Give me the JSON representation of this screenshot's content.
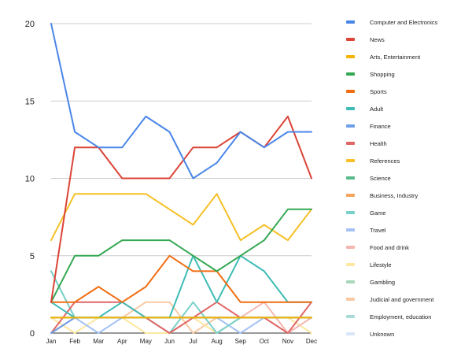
{
  "chart_data": {
    "type": "line",
    "categories": [
      "Jan",
      "Feb",
      "Mar",
      "Apr",
      "May",
      "Jun",
      "Jul",
      "Aug",
      "Sep",
      "Oct",
      "Nov",
      "Dec"
    ],
    "ylim": [
      0,
      20
    ],
    "yticks": [
      "0",
      "5",
      "10",
      "15",
      "20"
    ],
    "grid": true,
    "legend_position": "right",
    "series": [
      {
        "name": "Computer and Electronics",
        "color": "#4a86e8",
        "values": [
          20,
          13,
          12,
          12,
          14,
          13,
          10,
          11,
          13,
          12,
          13,
          13
        ]
      },
      {
        "name": "News",
        "color": "#db4437",
        "values": [
          2,
          12,
          12,
          10,
          10,
          10,
          12,
          12,
          13,
          12,
          14,
          10
        ]
      },
      {
        "name": "Arts, Entertainment",
        "color": "#f4b400",
        "values": [
          1,
          1,
          1,
          1,
          1,
          1,
          1,
          1,
          1,
          1,
          1,
          1
        ]
      },
      {
        "name": "Shopping",
        "color": "#34a853",
        "values": [
          2,
          5,
          5,
          6,
          6,
          6,
          5,
          4,
          5,
          6,
          8,
          8
        ]
      },
      {
        "name": "Sports",
        "color": "#f06d12",
        "values": [
          2,
          2,
          3,
          2,
          3,
          5,
          4,
          4,
          2,
          2,
          2,
          2
        ]
      },
      {
        "name": "Adult",
        "color": "#3ebcb5",
        "values": [
          2,
          1,
          1,
          2,
          1,
          1,
          5,
          2,
          5,
          4,
          2,
          2
        ]
      },
      {
        "name": "Finance",
        "color": "#6fa0e8",
        "values": [
          0,
          1,
          1,
          1,
          1,
          1,
          1,
          1,
          1,
          1,
          1,
          1
        ]
      },
      {
        "name": "Health",
        "color": "#e06666",
        "values": [
          0,
          2,
          2,
          2,
          1,
          0,
          1,
          2,
          1,
          1,
          0,
          2
        ]
      },
      {
        "name": "References",
        "color": "#f6c026",
        "values": [
          6,
          9,
          9,
          9,
          9,
          8,
          7,
          9,
          6,
          7,
          6,
          8
        ]
      },
      {
        "name": "Science",
        "color": "#57bb8a",
        "values": [
          1,
          1,
          1,
          1,
          1,
          1,
          1,
          1,
          1,
          1,
          1,
          1
        ]
      },
      {
        "name": "Business, Industry",
        "color": "#f6a35e",
        "values": [
          1,
          1,
          1,
          1,
          1,
          1,
          1,
          1,
          1,
          1,
          1,
          1
        ]
      },
      {
        "name": "Game",
        "color": "#78d0ca",
        "values": [
          4,
          1,
          1,
          1,
          1,
          0,
          2,
          0,
          1,
          1,
          1,
          1
        ]
      },
      {
        "name": "Travel",
        "color": "#a4c2f4",
        "values": [
          1,
          1,
          0,
          1,
          1,
          1,
          1,
          1,
          0,
          1,
          1,
          1
        ]
      },
      {
        "name": "Food and drink",
        "color": "#f4b6b0",
        "values": [
          0,
          1,
          1,
          1,
          1,
          1,
          1,
          1,
          1,
          2,
          0,
          1
        ]
      },
      {
        "name": "Lifestyle",
        "color": "#fce8a0",
        "values": [
          1,
          0,
          1,
          1,
          0,
          0,
          1,
          0,
          1,
          1,
          1,
          0
        ]
      },
      {
        "name": "Gambling",
        "color": "#a8d8b9",
        "values": [
          4,
          1,
          1,
          1,
          1,
          1,
          1,
          1,
          1,
          1,
          1,
          1
        ]
      },
      {
        "name": "Judicial and government",
        "color": "#f8c9a2",
        "values": [
          1,
          1,
          1,
          1,
          2,
          2,
          0,
          1,
          1,
          1,
          1,
          1
        ]
      },
      {
        "name": "Employment, education",
        "color": "#a9dcd8",
        "values": [
          1,
          1,
          1,
          1,
          1,
          1,
          1,
          1,
          1,
          1,
          1,
          1
        ]
      },
      {
        "name": "Unknown",
        "color": "#d9e6fa",
        "values": [
          1,
          1,
          1,
          1,
          1,
          1,
          1,
          1,
          1,
          1,
          1,
          1
        ]
      }
    ]
  }
}
